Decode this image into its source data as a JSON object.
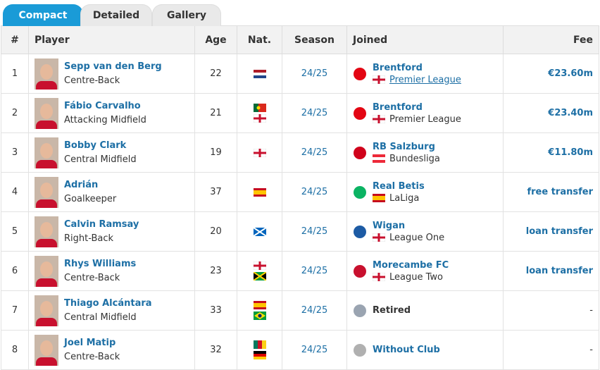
{
  "tabs": [
    "Compact",
    "Detailed",
    "Gallery"
  ],
  "table": {
    "headers": [
      "#",
      "Player",
      "Age",
      "Nat.",
      "Season",
      "Joined",
      "Fee"
    ],
    "rows": [
      {
        "number": 1,
        "player": "Sepp van den Berg",
        "position": "Centre-Back",
        "age": 22,
        "season": "24/25",
        "club": "Brentford",
        "league": "Premier League",
        "fee": "€23.60m"
      },
      {
        "number": 2,
        "player": "Fábio Carvalho",
        "position": "Attacking Midfield",
        "age": 21,
        "season": "24/25",
        "club": "Brentford",
        "league": "Premier League",
        "fee": "€23.40m"
      },
      {
        "number": 3,
        "player": "Bobby Clark",
        "position": "Central Midfield",
        "age": 19,
        "season": "24/25",
        "club": "RB Salzburg",
        "league": "Bundesliga",
        "fee": "€11.80m"
      },
      {
        "number": 4,
        "player": "Adrián",
        "position": "Goalkeeper",
        "age": 37,
        "season": "24/25",
        "club": "Real Betis",
        "league": "LaLiga",
        "fee": "free transfer"
      },
      {
        "number": 5,
        "player": "Calvin Ramsay",
        "position": "Right-Back",
        "age": 20,
        "season": "24/25",
        "club": "Wigan",
        "league": "League One",
        "fee": "loan transfer"
      },
      {
        "number": 6,
        "player": "Rhys Williams",
        "position": "Centre-Back",
        "age": 23,
        "season": "24/25",
        "club": "Morecambe FC",
        "league": "League Two",
        "fee": "loan transfer"
      },
      {
        "number": 7,
        "player": "Thiago Alcántara",
        "position": "Central Midfield",
        "age": 33,
        "season": "24/25",
        "club": "Retired",
        "fee": "-"
      },
      {
        "number": 8,
        "player": "Joel Matip",
        "position": "Centre-Back",
        "age": 32,
        "season": "24/25",
        "club": "Without Club",
        "fee": "-"
      }
    ]
  }
}
